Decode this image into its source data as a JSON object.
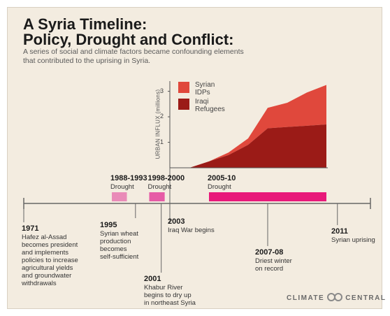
{
  "title_line1": "A Syria Timeline:",
  "title_line2": "Policy, Drought and Conflict:",
  "subtitle": "A series of social and climate factors became confounding elements that contributed to the uprising in Syria.",
  "chart_data": {
    "type": "area",
    "ylabel": "URBAN INFLUX (millions)",
    "yticks": [
      "1",
      "2",
      "3"
    ],
    "ylim": [
      0,
      3.4
    ],
    "x": [
      2003,
      2004,
      2005,
      2006,
      2007,
      2008,
      2009,
      2010,
      2011
    ],
    "series": [
      {
        "name": "Iraqi Refugees",
        "color": "#9b1b17",
        "values": [
          0,
          0,
          0.25,
          0.5,
          0.9,
          1.55,
          1.6,
          1.65,
          1.7
        ]
      },
      {
        "name": "Syrian IDPs",
        "color": "#e0483c",
        "values": [
          0,
          0,
          0,
          0.1,
          0.25,
          0.8,
          0.95,
          1.3,
          1.55
        ]
      }
    ],
    "legend_position": "top-left",
    "legend": [
      {
        "label_line1": "Syrian",
        "label_line2": "IDPs",
        "color": "#e0483c"
      },
      {
        "label_line1": "Iraqi",
        "label_line2": "Refugees",
        "color": "#9b1b17"
      }
    ]
  },
  "timeline": {
    "start_year": 1969,
    "end_year": 2013,
    "axis_color": "#666666",
    "droughts": [
      {
        "years": "1988-1993",
        "label": "Drought",
        "start": 1989.5,
        "end": 1993,
        "color": "#e98bb8"
      },
      {
        "years": "1998-2000",
        "label": "Drought",
        "start": 1998.2,
        "end": 2001.8,
        "color": "#e65ba6"
      },
      {
        "years": "2005-10",
        "label": "Drought",
        "start": 2005,
        "end": 2011,
        "color": "#e8197a"
      }
    ],
    "events": [
      {
        "year": "1971",
        "desc": [
          "Hafez al-Assad",
          "becomes president",
          "and implements",
          "policies to increase",
          "agricultural yields",
          "and groundwater",
          "withdrawals"
        ],
        "pos": 1969
      },
      {
        "year": "1995",
        "desc": [
          "Syrian wheat",
          "production",
          "becomes",
          "self-sufficient"
        ],
        "pos": 1995
      },
      {
        "year": "2001",
        "desc": [
          "Khabur River",
          "begins to dry up",
          "in northeast Syria"
        ],
        "pos": 2001
      },
      {
        "year": "2003",
        "desc": [
          "Iraq War begins"
        ],
        "pos": 2003
      },
      {
        "year": "2007-08",
        "desc": [
          "Driest winter",
          "on record"
        ],
        "pos": 2008
      },
      {
        "year": "2011",
        "desc": [
          "Syrian uprising"
        ],
        "pos": 2011.5
      }
    ]
  },
  "logo": {
    "left": "CLIMATE",
    "right": "CENTRAL"
  }
}
